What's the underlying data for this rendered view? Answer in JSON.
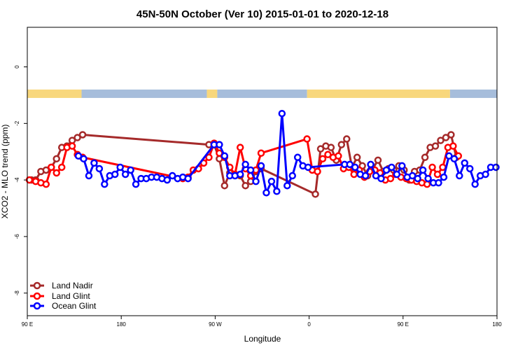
{
  "chart_data": {
    "type": "line",
    "title": "45N-50N October (Ver 10)   2015-01-01 to 2020-12-18",
    "xlabel": "Longitude",
    "ylabel": "XCO2 - MLO trend (ppm)",
    "x_ticks": [
      {
        "value": 0,
        "label": "90 E"
      },
      {
        "value": 90,
        "label": "180"
      },
      {
        "value": 180,
        "label": "90 W"
      },
      {
        "value": 270,
        "label": "0"
      },
      {
        "value": 360,
        "label": "90 E"
      },
      {
        "value": 450,
        "label": "180"
      }
    ],
    "y_ticks": [
      0,
      -2,
      -4,
      -6,
      -8
    ],
    "xlim": [
      0,
      450
    ],
    "ylim": [
      -8.8,
      1.4
    ],
    "grid": false,
    "legend_position": "bottom-left",
    "colors": {
      "land_nadir": "#a52a2a",
      "land_glint": "#ff0000",
      "ocean_glint": "#0000ff",
      "land_band": "#f8d77c",
      "ocean_band": "#a6bddb"
    },
    "series": [
      {
        "name": "Land Nadir",
        "color": "#a52a2a",
        "x": [
          4,
          8,
          13,
          18,
          23,
          28,
          33,
          38,
          43,
          48,
          53,
          174,
          179,
          184,
          189,
          194,
          199,
          204,
          209,
          214,
          219,
          224,
          276,
          281,
          286,
          291,
          296,
          301,
          306,
          311,
          316,
          321,
          326,
          331,
          336,
          341,
          346,
          351,
          356,
          361,
          366,
          371,
          376,
          381,
          386,
          391,
          396,
          401,
          406,
          411
        ],
        "y": [
          -4.0,
          -4.0,
          -3.7,
          -3.65,
          -3.55,
          -3.25,
          -2.85,
          -2.8,
          -2.6,
          -2.5,
          -2.4,
          -2.75,
          -2.75,
          -3.25,
          -4.2,
          -3.75,
          -3.8,
          -3.85,
          -4.2,
          -4.05,
          -3.7,
          -3.6,
          -4.5,
          -2.9,
          -2.8,
          -2.85,
          -3.3,
          -2.75,
          -2.55,
          -3.55,
          -3.2,
          -3.5,
          -3.85,
          -3.6,
          -3.3,
          -3.7,
          -3.6,
          -3.65,
          -3.5,
          -3.65,
          -4.0,
          -3.7,
          -3.65,
          -3.2,
          -2.85,
          -2.8,
          -2.6,
          -2.5,
          -2.4,
          -3.2
        ]
      },
      {
        "name": "Land Glint",
        "color": "#ff0000",
        "x": [
          2,
          8,
          13,
          18,
          23,
          28,
          33,
          38,
          43,
          48,
          53,
          149,
          154,
          159,
          164,
          169,
          174,
          179,
          184,
          189,
          194,
          199,
          204,
          209,
          214,
          219,
          224,
          268,
          273,
          278,
          283,
          288,
          293,
          298,
          303,
          308,
          313,
          318,
          323,
          328,
          333,
          338,
          343,
          348,
          353,
          358,
          363,
          368,
          373,
          378,
          383,
          388,
          393,
          398,
          403,
          408,
          413
        ],
        "y": [
          -4.0,
          -4.05,
          -4.1,
          -4.15,
          -3.55,
          -3.75,
          -3.55,
          -2.85,
          -2.8,
          -3.1,
          -3.2,
          -3.95,
          -3.9,
          -3.65,
          -3.6,
          -3.4,
          -3.2,
          -2.7,
          -3.05,
          -3.2,
          -3.55,
          -3.8,
          -2.85,
          -3.6,
          -3.85,
          -3.65,
          -3.05,
          -2.55,
          -3.65,
          -3.7,
          -3.25,
          -3.1,
          -3.2,
          -3.15,
          -3.6,
          -3.55,
          -3.8,
          -3.65,
          -3.9,
          -3.7,
          -3.65,
          -3.75,
          -4.0,
          -3.95,
          -3.8,
          -3.9,
          -3.95,
          -4.0,
          -4.05,
          -4.1,
          -4.15,
          -3.55,
          -3.8,
          -3.55,
          -2.85,
          -2.8,
          -3.15
        ]
      },
      {
        "name": "Ocean Glint",
        "color": "#0000ff",
        "x": [
          49,
          54,
          59,
          64,
          69,
          74,
          79,
          84,
          89,
          94,
          99,
          104,
          109,
          114,
          119,
          124,
          129,
          134,
          139,
          144,
          149,
          154,
          179,
          184,
          189,
          194,
          199,
          204,
          209,
          214,
          219,
          224,
          229,
          234,
          239,
          244,
          249,
          254,
          259,
          264,
          269,
          304,
          309,
          314,
          319,
          324,
          329,
          334,
          339,
          344,
          349,
          354,
          359,
          364,
          369,
          374,
          379,
          384,
          389,
          394,
          399,
          404,
          409,
          414,
          419,
          424,
          429,
          434,
          439,
          444,
          449
        ],
        "y": [
          -3.15,
          -3.25,
          -3.85,
          -3.4,
          -3.6,
          -4.15,
          -3.85,
          -3.8,
          -3.55,
          -3.8,
          -3.65,
          -4.15,
          -3.95,
          -3.95,
          -3.9,
          -3.9,
          -3.95,
          -4.0,
          -3.85,
          -3.95,
          -3.9,
          -3.95,
          -2.75,
          -2.75,
          -3.15,
          -3.85,
          -3.85,
          -3.8,
          -3.45,
          -3.65,
          -4.05,
          -3.5,
          -4.45,
          -4.05,
          -4.4,
          -1.65,
          -4.2,
          -3.85,
          -3.2,
          -3.5,
          -3.55,
          -3.45,
          -3.45,
          -3.55,
          -3.8,
          -3.85,
          -3.45,
          -3.85,
          -3.95,
          -3.65,
          -3.55,
          -3.8,
          -3.5,
          -3.9,
          -3.85,
          -3.95,
          -3.65,
          -3.95,
          -4.1,
          -4.1,
          -3.9,
          -3.15,
          -3.25,
          -3.85,
          -3.4,
          -3.6,
          -4.15,
          -3.85,
          -3.8,
          -3.55,
          -3.55
        ]
      }
    ],
    "band": {
      "y_value": -0.95,
      "segments": [
        {
          "from": 0,
          "to": 52,
          "kind": "land"
        },
        {
          "from": 52,
          "to": 172,
          "kind": "ocean"
        },
        {
          "from": 172,
          "to": 182,
          "kind": "land"
        },
        {
          "from": 182,
          "to": 268,
          "kind": "ocean"
        },
        {
          "from": 268,
          "to": 405,
          "kind": "land"
        },
        {
          "from": 405,
          "to": 450,
          "kind": "ocean"
        }
      ]
    }
  }
}
